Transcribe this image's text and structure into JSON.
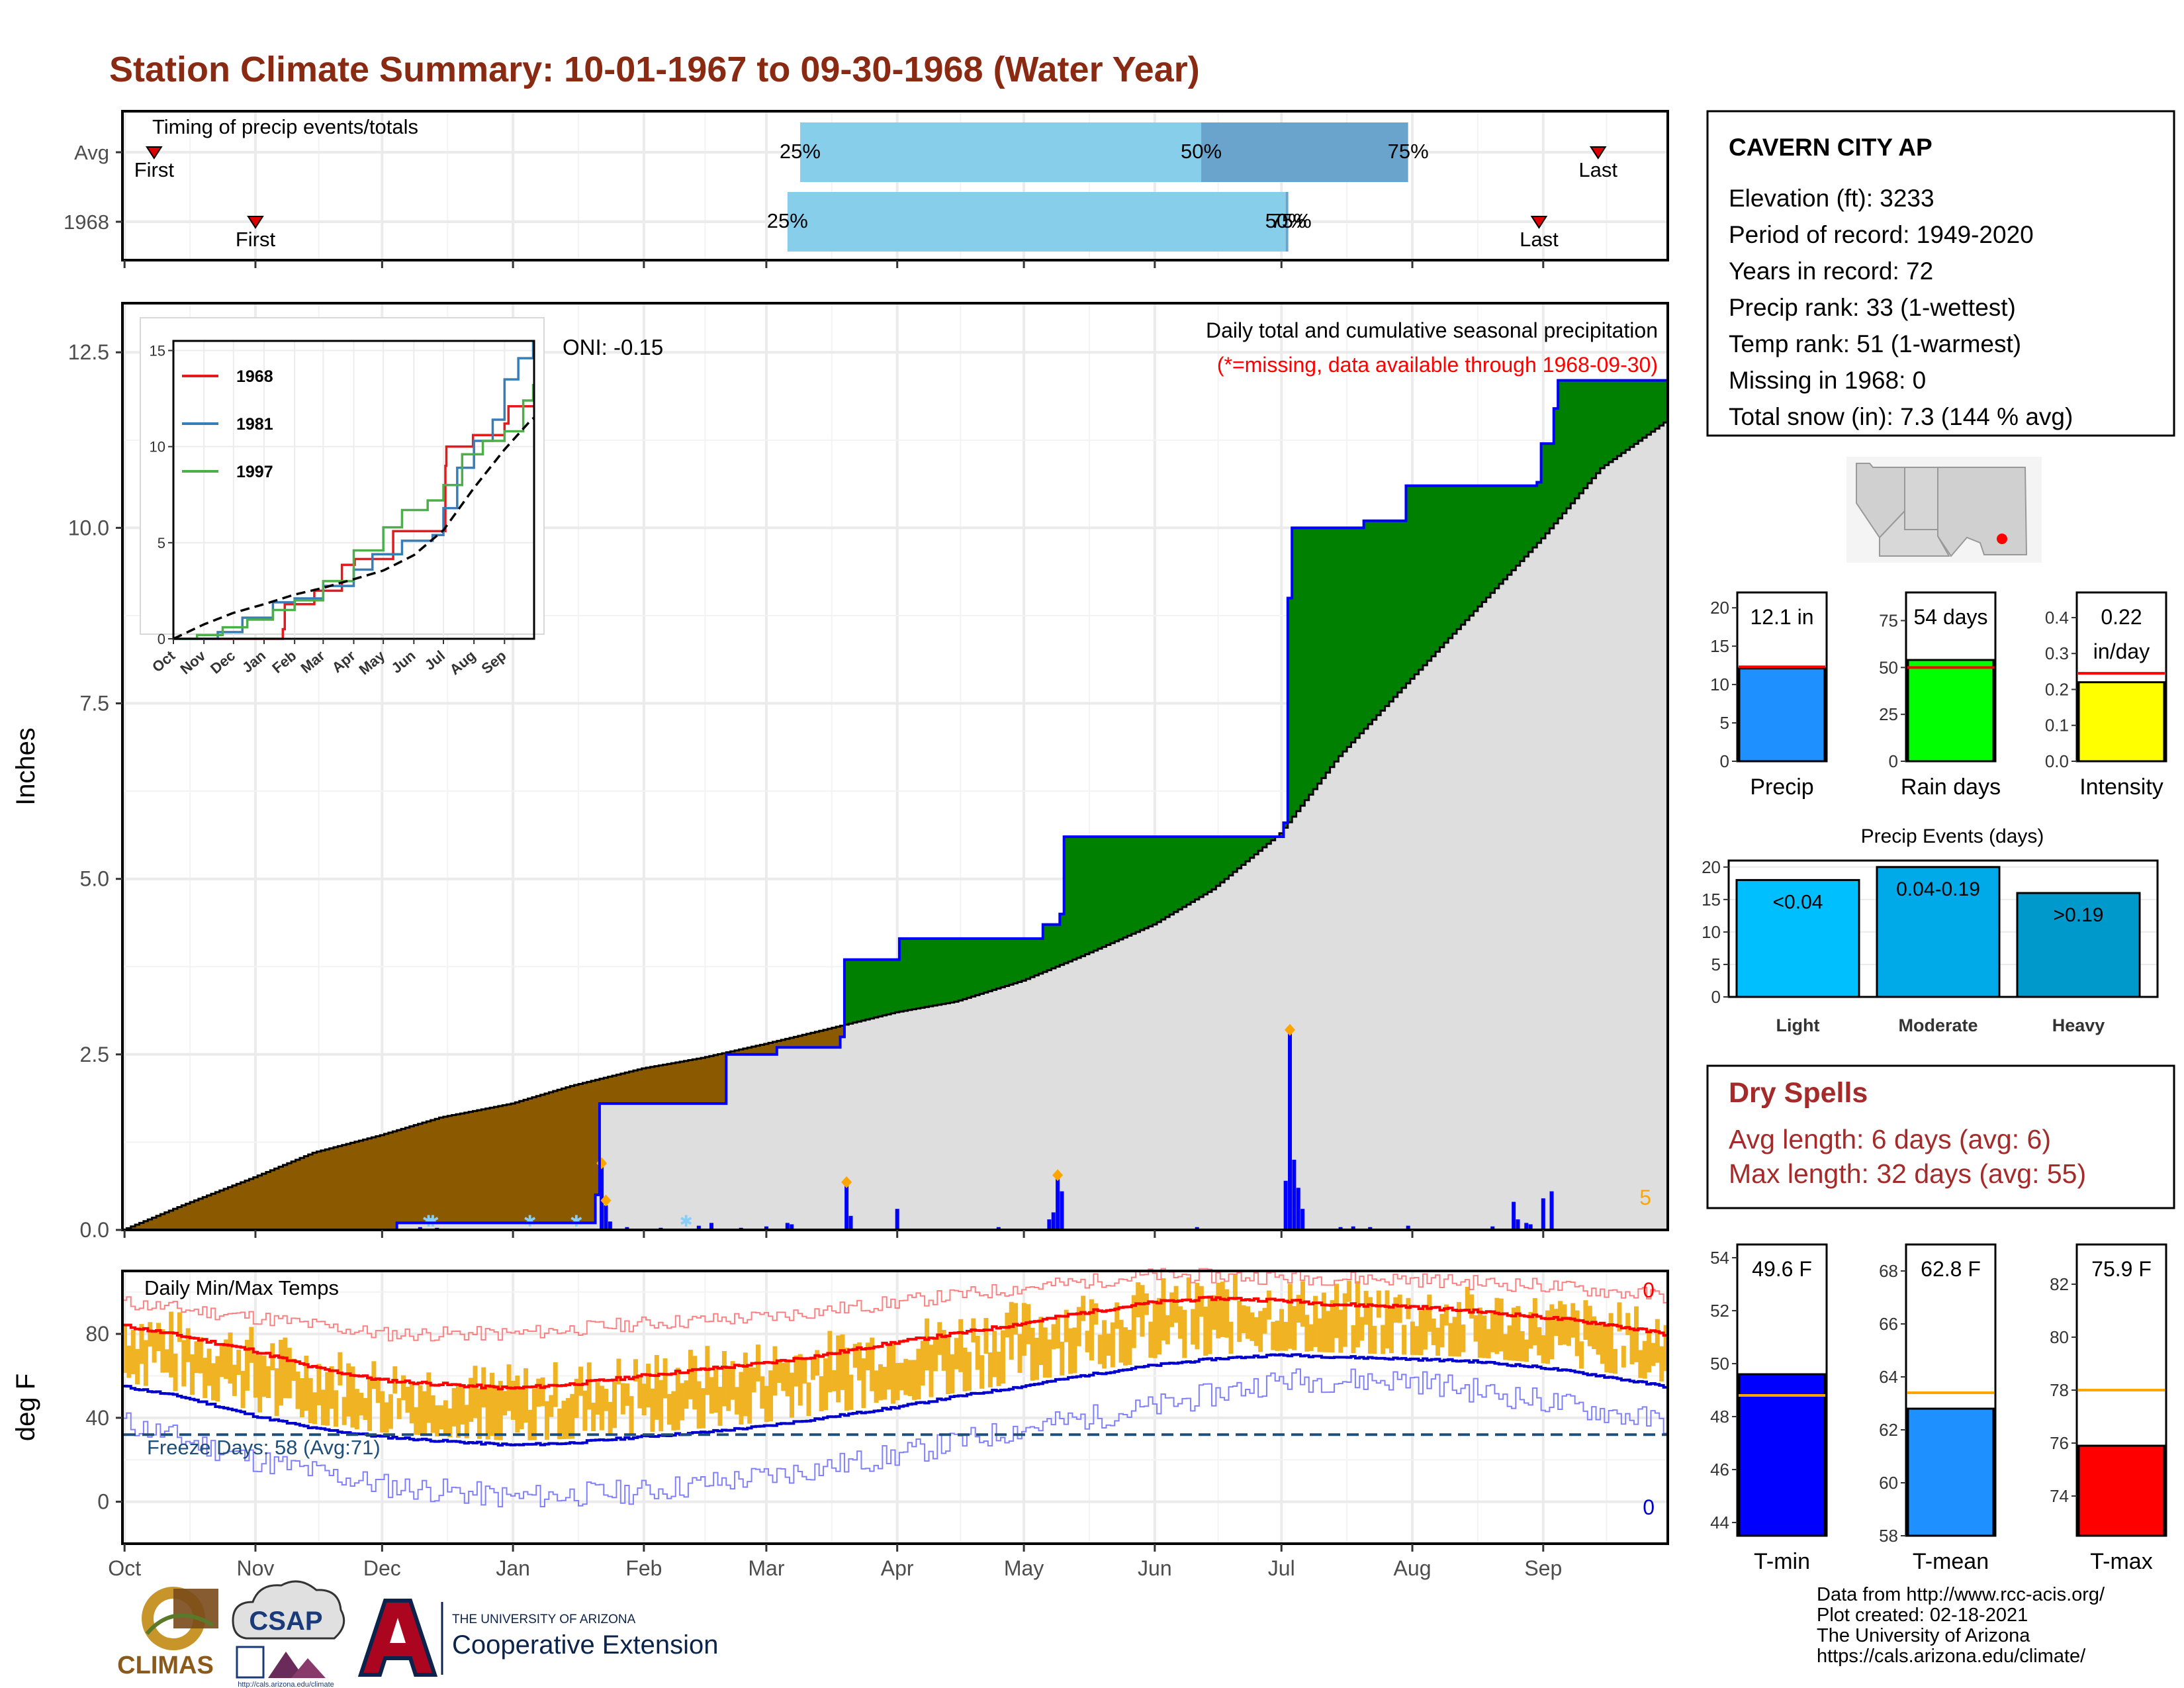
{
  "title": "Station Climate Summary: 10-01-1967 to 09-30-1968 (Water Year)",
  "timing": {
    "label": "Timing of precip events/totals",
    "rows": [
      {
        "name": "Avg",
        "first": "Oct 8",
        "last": "Sep 14",
        "first_label": "First",
        "last_label": "Last",
        "p25": "Mar 9",
        "p50": "Jun 12",
        "p75": "Jul 31",
        "p25_label": "25%",
        "p50_label": "50%",
        "p75_label": "75%"
      },
      {
        "name": "1968",
        "first": "Nov 1",
        "last": "Aug 31",
        "first_label": "First",
        "last_label": "Last",
        "p25": "Mar 6",
        "p50": "Jul 2",
        "p75": "Jul 2",
        "p25_label": "25%",
        "p50_label": "50%",
        "p75_label": "75%"
      }
    ],
    "colors": {
      "light": "#87ceeb",
      "dark": "#6aa4cc",
      "marker": "#dd0000"
    }
  },
  "precip": {
    "ylabel": "Inches",
    "ylim": [
      0,
      13.2
    ],
    "yticks": [
      "0.0",
      "2.5",
      "5.0",
      "7.5",
      "10.0",
      "12.5"
    ],
    "oni": "ONI: -0.15",
    "caption1": "Daily total and cumulative seasonal precipitation",
    "caption2": "(*=missing, data available through 1968-09-30)",
    "corner_value": "5",
    "cum_observed": [
      [
        "Oct 1",
        0
      ],
      [
        "Dec 1",
        0
      ],
      [
        "Dec 5",
        0.1
      ],
      [
        "Jan 17",
        0.1
      ],
      [
        "Jan 21",
        0.5
      ],
      [
        "Jan 22",
        1.8
      ],
      [
        "Feb 20",
        1.8
      ],
      [
        "Feb 21",
        2.5
      ],
      [
        "Mar 4",
        2.6
      ],
      [
        "Mar 19",
        2.75
      ],
      [
        "Mar 20",
        3.85
      ],
      [
        "Apr 1",
        3.85
      ],
      [
        "Apr 2",
        4.15
      ],
      [
        "May 6",
        4.35
      ],
      [
        "May 10",
        4.5
      ],
      [
        "May 11",
        5.6
      ],
      [
        "Jul 1",
        5.6
      ],
      [
        "Jul 2",
        5.8
      ],
      [
        "Jul 3",
        9.0
      ],
      [
        "Jul 4",
        10.0
      ],
      [
        "Jul 21",
        10.1
      ],
      [
        "Jul 31",
        10.6
      ],
      [
        "Aug 31",
        10.65
      ],
      [
        "Sep 1",
        11.2
      ],
      [
        "Sep 4",
        11.7
      ],
      [
        "Sep 5",
        12.1
      ],
      [
        "Sep 30",
        12.1
      ]
    ],
    "cum_avg": [
      [
        "Oct 1",
        0
      ],
      [
        "Oct 15",
        0.35
      ],
      [
        "Nov 1",
        0.75
      ],
      [
        "Nov 15",
        1.1
      ],
      [
        "Dec 1",
        1.35
      ],
      [
        "Dec 15",
        1.6
      ],
      [
        "Jan 1",
        1.8
      ],
      [
        "Jan 15",
        2.05
      ],
      [
        "Feb 1",
        2.3
      ],
      [
        "Feb 15",
        2.45
      ],
      [
        "Mar 1",
        2.65
      ],
      [
        "Mar 15",
        2.85
      ],
      [
        "Apr 1",
        3.1
      ],
      [
        "Apr 15",
        3.25
      ],
      [
        "May 1",
        3.55
      ],
      [
        "May 15",
        3.9
      ],
      [
        "Jun 1",
        4.35
      ],
      [
        "Jun 15",
        4.85
      ],
      [
        "Jul 1",
        5.65
      ],
      [
        "Jul 15",
        6.75
      ],
      [
        "Aug 1",
        7.85
      ],
      [
        "Aug 15",
        8.75
      ],
      [
        "Sep 1",
        9.85
      ],
      [
        "Sep 15",
        10.85
      ],
      [
        "Sep 30",
        11.5
      ]
    ],
    "daily": [
      [
        "Dec 10",
        0.04
      ],
      [
        "Dec 14",
        0.03
      ],
      [
        "Jan 22",
        0.9
      ],
      [
        "Jan 23",
        0.35
      ],
      [
        "Jan 24",
        0.12
      ],
      [
        "Jan 28",
        0.04
      ],
      [
        "Feb 5",
        0.03
      ],
      [
        "Feb 14",
        0.06
      ],
      [
        "Feb 17",
        0.1
      ],
      [
        "Feb 24",
        0.03
      ],
      [
        "Mar 1",
        0.05
      ],
      [
        "Mar 6",
        0.1
      ],
      [
        "Mar 7",
        0.08
      ],
      [
        "Mar 20",
        0.65
      ],
      [
        "Mar 21",
        0.2
      ],
      [
        "Apr 1",
        0.3
      ],
      [
        "Apr 25",
        0.04
      ],
      [
        "May 7",
        0.15
      ],
      [
        "May 8",
        0.25
      ],
      [
        "May 9",
        0.8
      ],
      [
        "May 10",
        0.55
      ],
      [
        "Jun 11",
        0.04
      ],
      [
        "Jul 2",
        0.7
      ],
      [
        "Jul 3",
        2.85
      ],
      [
        "Jul 4",
        1.0
      ],
      [
        "Jul 5",
        0.6
      ],
      [
        "Jul 6",
        0.3
      ],
      [
        "Jul 15",
        0.04
      ],
      [
        "Jul 18",
        0.05
      ],
      [
        "Jul 22",
        0.04
      ],
      [
        "Jul 31",
        0.06
      ],
      [
        "Aug 20",
        0.05
      ],
      [
        "Aug 25",
        0.4
      ],
      [
        "Aug 26",
        0.15
      ],
      [
        "Aug 28",
        0.1
      ],
      [
        "Aug 29",
        0.08
      ],
      [
        "Sep 1",
        0.45
      ],
      [
        "Sep 3",
        0.55
      ]
    ],
    "diamonds": [
      [
        "Jan 22",
        0.95
      ],
      [
        "Jan 23",
        0.42
      ],
      [
        "Mar 20",
        0.68
      ],
      [
        "May 9",
        0.78
      ],
      [
        "Jul 3",
        2.85
      ]
    ],
    "snow_marks": [
      "Dec 12",
      "Dec 13",
      "Jan 5",
      "Jan 16",
      "Feb 11"
    ],
    "colors": {
      "observed": "#0000ff",
      "avg": "#000000",
      "wet": "#008000",
      "dry": "#8b5a00",
      "bg": "#dedede",
      "diamond": "#ffa500",
      "daily": "#0000ff"
    }
  },
  "inset": {
    "ylim": [
      0,
      15.5
    ],
    "yticks": [
      "0",
      "5",
      "10",
      "15"
    ],
    "xticks": [
      "Oct",
      "Nov",
      "Dec",
      "Jan",
      "Feb",
      "Mar",
      "Apr",
      "May",
      "Jun",
      "Jul",
      "Aug",
      "Sep"
    ],
    "series": [
      {
        "name": "1968",
        "color": "#e41a1c",
        "values": [
          [
            "Oct 1",
            0
          ],
          [
            "Dec 1",
            0
          ],
          [
            "Jan 20",
            0.5
          ],
          [
            "Jan 22",
            1.8
          ],
          [
            "Feb 21",
            2.5
          ],
          [
            "Mar 20",
            3.85
          ],
          [
            "Apr 2",
            4.15
          ],
          [
            "May 11",
            5.6
          ],
          [
            "Jul 3",
            9.0
          ],
          [
            "Jul 4",
            10.0
          ],
          [
            "Jul 31",
            10.6
          ],
          [
            "Sep 1",
            11.2
          ],
          [
            "Sep 5",
            12.1
          ],
          [
            "Sep 30",
            12.1
          ]
        ]
      },
      {
        "name": "1981",
        "color": "#377eb8",
        "values": [
          [
            "Oct 1",
            0
          ],
          [
            "Oct 20",
            0
          ],
          [
            "Nov 15",
            0.35
          ],
          [
            "Dec 10",
            1.1
          ],
          [
            "Jan 10",
            1.9
          ],
          [
            "Feb 1",
            2.1
          ],
          [
            "Mar 1",
            2.75
          ],
          [
            "Apr 1",
            3.6
          ],
          [
            "Apr 20",
            4.4
          ],
          [
            "May 20",
            5.1
          ],
          [
            "Jun 20",
            5.4
          ],
          [
            "Jul 1",
            6.8
          ],
          [
            "Jul 15",
            8.9
          ],
          [
            "Aug 1",
            10.3
          ],
          [
            "Aug 20",
            11.4
          ],
          [
            "Sep 1",
            13.5
          ],
          [
            "Sep 15",
            14.6
          ],
          [
            "Sep 30",
            15.4
          ]
        ]
      },
      {
        "name": "1997",
        "color": "#4daf4a",
        "values": [
          [
            "Oct 1",
            0
          ],
          [
            "Oct 25",
            0.2
          ],
          [
            "Nov 20",
            0.6
          ],
          [
            "Dec 15",
            1.0
          ],
          [
            "Jan 10",
            1.5
          ],
          [
            "Feb 1",
            2.0
          ],
          [
            "Mar 1",
            3.0
          ],
          [
            "Apr 1",
            4.6
          ],
          [
            "May 1",
            5.8
          ],
          [
            "May 20",
            6.7
          ],
          [
            "Jun 15",
            7.2
          ],
          [
            "Jul 1",
            8.0
          ],
          [
            "Jul 20",
            9.6
          ],
          [
            "Aug 10",
            10.3
          ],
          [
            "Sep 1",
            10.8
          ],
          [
            "Sep 20",
            12.4
          ],
          [
            "Sep 30",
            13.2
          ]
        ]
      }
    ],
    "avg": [
      [
        "Oct 1",
        0
      ],
      [
        "Nov 1",
        0.75
      ],
      [
        "Dec 1",
        1.35
      ],
      [
        "Jan 1",
        1.8
      ],
      [
        "Feb 1",
        2.3
      ],
      [
        "Mar 1",
        2.65
      ],
      [
        "Apr 1",
        3.1
      ],
      [
        "May 1",
        3.55
      ],
      [
        "Jun 1",
        4.35
      ],
      [
        "Jul 1",
        5.65
      ],
      [
        "Aug 1",
        7.85
      ],
      [
        "Sep 1",
        9.85
      ],
      [
        "Sep 30",
        11.5
      ]
    ]
  },
  "temps": {
    "ylabel": "deg F",
    "label": "Daily Min/Max Temps",
    "ylim": [
      -20,
      110
    ],
    "yticks": [
      "0",
      "40",
      "80"
    ],
    "freeze_label": "Freeze Days: 58 (Avg:71)",
    "freeze_line": 32,
    "max_record_count": "0",
    "min_record_count": "0",
    "avg_max": [
      [
        "Oct 1",
        84
      ],
      [
        "Oct 15",
        79
      ],
      [
        "Nov 1",
        72
      ],
      [
        "Nov 15",
        64
      ],
      [
        "Dec 1",
        58
      ],
      [
        "Dec 15",
        56
      ],
      [
        "Jan 1",
        54
      ],
      [
        "Jan 15",
        56
      ],
      [
        "Feb 1",
        60
      ],
      [
        "Feb 15",
        63
      ],
      [
        "Mar 1",
        66
      ],
      [
        "Mar 15",
        70
      ],
      [
        "Apr 1",
        76
      ],
      [
        "Apr 15",
        80
      ],
      [
        "May 1",
        85
      ],
      [
        "May 15",
        90
      ],
      [
        "Jun 1",
        95
      ],
      [
        "Jun 15",
        97
      ],
      [
        "Jul 1",
        96
      ],
      [
        "Jul 15",
        94
      ],
      [
        "Aug 1",
        93
      ],
      [
        "Aug 15",
        91
      ],
      [
        "Sep 1",
        88
      ],
      [
        "Sep 15",
        85
      ],
      [
        "Sep 30",
        80
      ]
    ],
    "avg_min": [
      [
        "Oct 1",
        55
      ],
      [
        "Oct 15",
        50
      ],
      [
        "Nov 1",
        41
      ],
      [
        "Nov 15",
        35
      ],
      [
        "Dec 1",
        31
      ],
      [
        "Dec 15",
        29
      ],
      [
        "Jan 1",
        27
      ],
      [
        "Jan 15",
        28
      ],
      [
        "Feb 1",
        31
      ],
      [
        "Feb 15",
        33
      ],
      [
        "Mar 1",
        36
      ],
      [
        "Mar 15",
        40
      ],
      [
        "Apr 1",
        45
      ],
      [
        "Apr 15",
        50
      ],
      [
        "May 1",
        55
      ],
      [
        "May 15",
        60
      ],
      [
        "Jun 1",
        65
      ],
      [
        "Jun 15",
        68
      ],
      [
        "Jul 1",
        70
      ],
      [
        "Jul 15",
        69
      ],
      [
        "Aug 1",
        68
      ],
      [
        "Aug 15",
        67
      ],
      [
        "Sep 1",
        64
      ],
      [
        "Sep 15",
        60
      ],
      [
        "Sep 30",
        55
      ]
    ],
    "rec_max": [
      [
        "Oct 1",
        95
      ],
      [
        "Nov 1",
        88
      ],
      [
        "Dec 1",
        80
      ],
      [
        "Jan 1",
        80
      ],
      [
        "Feb 1",
        85
      ],
      [
        "Mar 1",
        88
      ],
      [
        "Apr 1",
        95
      ],
      [
        "May 1",
        102
      ],
      [
        "Jun 1",
        108
      ],
      [
        "Jul 1",
        107
      ],
      [
        "Aug 1",
        106
      ],
      [
        "Sep 1",
        103
      ],
      [
        "Sep 30",
        98
      ]
    ],
    "rec_min": [
      [
        "Oct 1",
        38
      ],
      [
        "Nov 1",
        20
      ],
      [
        "Dec 1",
        8
      ],
      [
        "Jan 1",
        2
      ],
      [
        "Feb 1",
        5
      ],
      [
        "Mar 1",
        12
      ],
      [
        "Apr 1",
        22
      ],
      [
        "May 1",
        35
      ],
      [
        "Jun 1",
        45
      ],
      [
        "Jul 1",
        58
      ],
      [
        "Aug 1",
        58
      ],
      [
        "Sep 1",
        48
      ],
      [
        "Sep 30",
        38
      ]
    ],
    "colors": {
      "bars": "#f0b323",
      "avg_max": "#ff0000",
      "avg_min": "#0000cc",
      "rec_max": "#ff8080",
      "rec_min": "#8080ff",
      "freeze": "#1f4e79"
    }
  },
  "months": [
    "Oct",
    "Nov",
    "Dec",
    "Jan",
    "Feb",
    "Mar",
    "Apr",
    "May",
    "Jun",
    "Jul",
    "Aug",
    "Sep"
  ],
  "station": {
    "name": "CAVERN CITY AP",
    "lines": [
      "Elevation (ft): 3233",
      "Period of record: 1949-2020",
      "Years in record: 72",
      "Precip rank: 33 (1-wettest)",
      "Temp rank: 51 (1-warmest)",
      "Missing in 1968: 0",
      "Total snow (in): 7.3 (144 % avg)"
    ]
  },
  "precip_bars": [
    {
      "category": "Precip",
      "value": 12.1,
      "avg": 12.3,
      "label": "12.1 in",
      "ylim": [
        0,
        22
      ],
      "ticks": [
        "0",
        "5",
        "10",
        "15",
        "20"
      ],
      "color": "#1e90ff"
    },
    {
      "category": "Rain days",
      "value": 54,
      "avg": 50,
      "label": "54 days",
      "ylim": [
        0,
        90
      ],
      "ticks": [
        "0",
        "25",
        "50",
        "75"
      ],
      "color": "#00ff00"
    },
    {
      "category": "Intensity",
      "value": 0.22,
      "avg": 0.245,
      "label": "0.22",
      "label2": "in/day",
      "ylim": [
        0,
        0.47
      ],
      "ticks": [
        "0.0",
        "0.1",
        "0.2",
        "0.3",
        "0.4"
      ],
      "color": "#ffff00"
    }
  ],
  "events": {
    "title": "Precip Events (days)",
    "ylim": [
      0,
      21
    ],
    "ticks": [
      "0",
      "5",
      "10",
      "15",
      "20"
    ],
    "bars": [
      {
        "category": "Light",
        "value": 18,
        "label": "<0.04",
        "color": "#00bfff"
      },
      {
        "category": "Moderate",
        "value": 20,
        "label": "0.04-0.19",
        "color": "#00a9e8"
      },
      {
        "category": "Heavy",
        "value": 16,
        "label": ">0.19",
        "color": "#0099cc"
      }
    ]
  },
  "dry_spells": {
    "title": "Dry Spells",
    "avg_line": "Avg length: 6 days (avg: 6)",
    "max_line": "Max length: 32 days (avg: 55)"
  },
  "temp_bars": [
    {
      "category": "T-min",
      "value": 49.6,
      "avg": 48.8,
      "label": "49.6 F",
      "ylim": [
        43.5,
        54.5
      ],
      "ticks": [
        "44",
        "46",
        "48",
        "50",
        "52",
        "54"
      ],
      "color": "#0000ff"
    },
    {
      "category": "T-mean",
      "value": 62.8,
      "avg": 63.4,
      "label": "62.8 F",
      "ylim": [
        58,
        69
      ],
      "ticks": [
        "58",
        "60",
        "62",
        "64",
        "66",
        "68"
      ],
      "color": "#1e90ff"
    },
    {
      "category": "T-max",
      "value": 75.9,
      "avg": 78.0,
      "label": "75.9 F",
      "ylim": [
        72.5,
        83.5
      ],
      "ticks": [
        "74",
        "76",
        "78",
        "80",
        "82"
      ],
      "color": "#ff0000"
    }
  ],
  "footer": {
    "lines": [
      "Data from http://www.rcc-acis.org/",
      "Plot created: 02-18-2021",
      "The University of Arizona",
      "https://cals.arizona.edu/climate/"
    ],
    "climas": "CLIMAS",
    "csap": "CSAP",
    "csap_url": "http://cals.arizona.edu/climate",
    "ua_small": "THE UNIVERSITY OF ARIZONA",
    "ua_big": "Cooperative Extension"
  }
}
